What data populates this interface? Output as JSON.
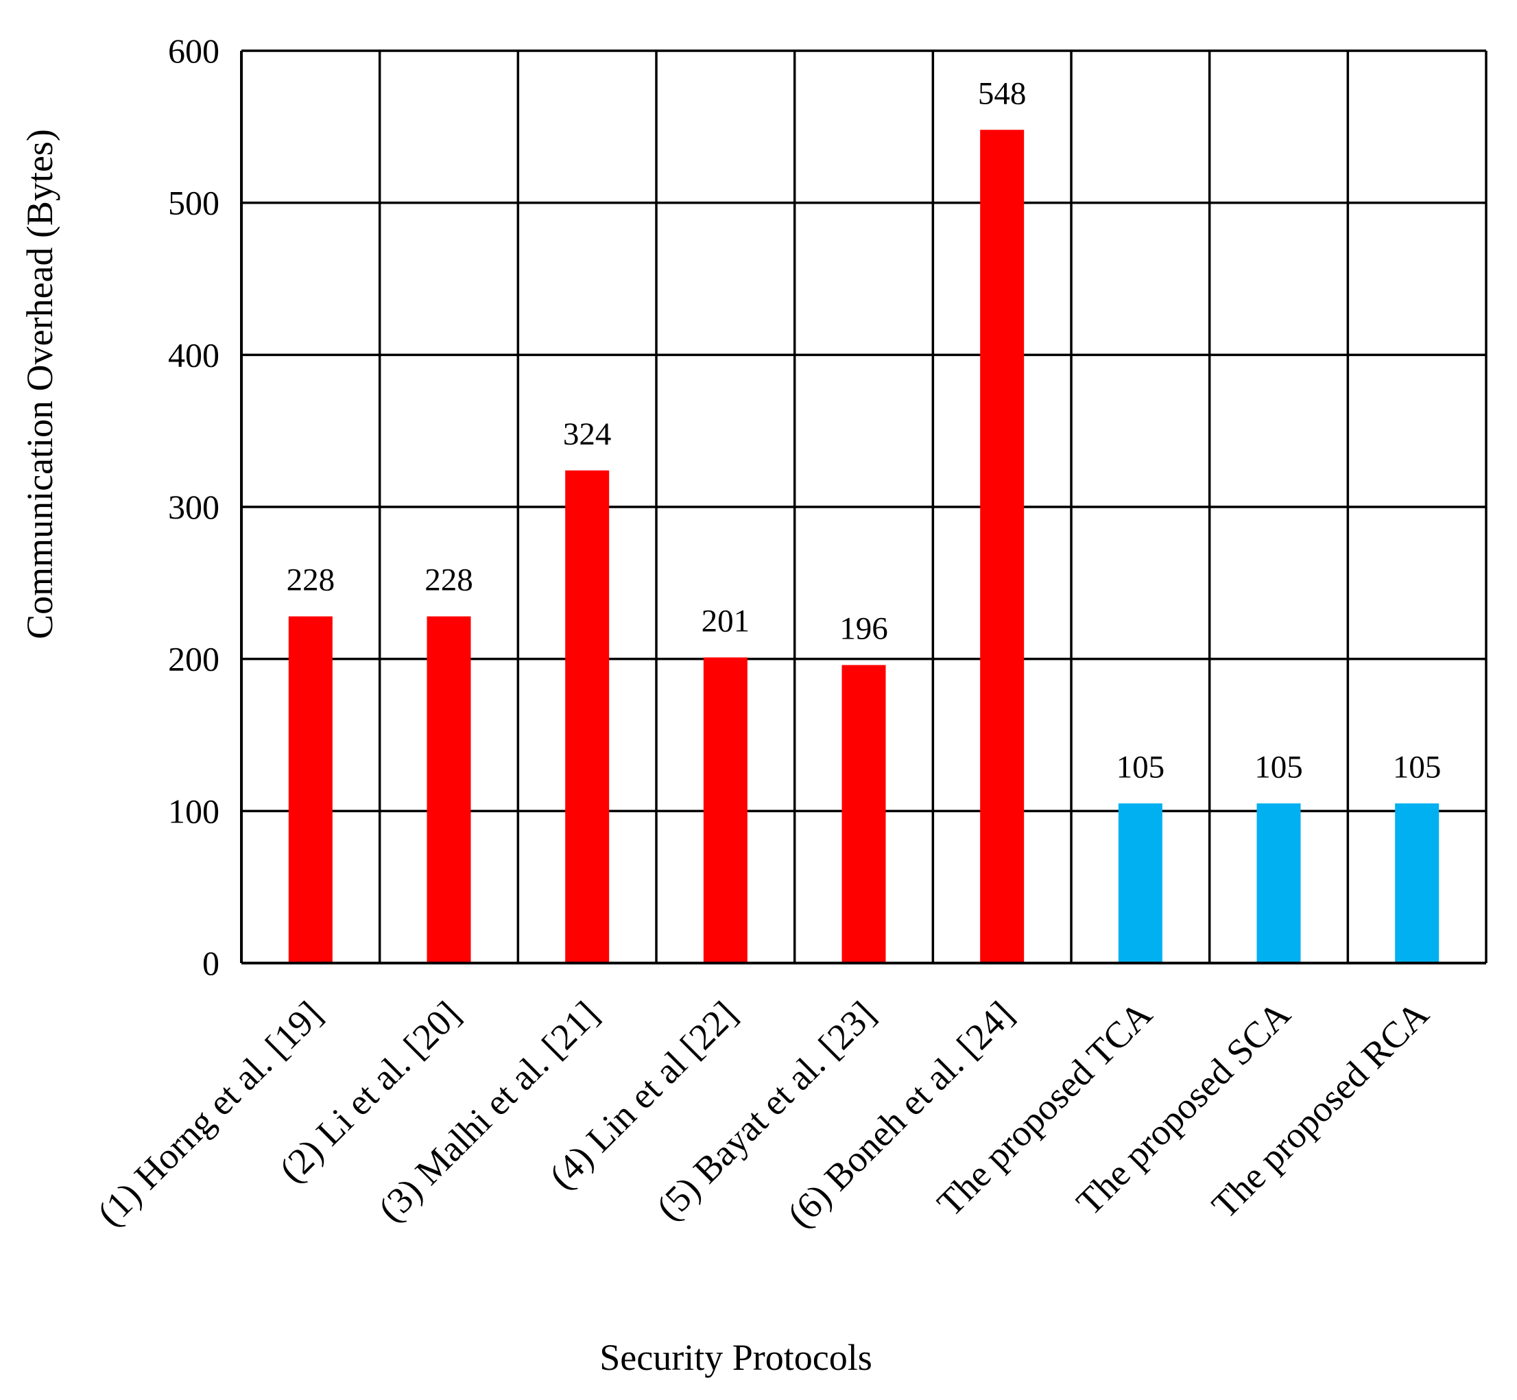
{
  "chart_data": {
    "type": "bar",
    "title": "",
    "xlabel": "Security Protocols",
    "ylabel": "Communication Overhead (Bytes)",
    "ylim": [
      0,
      600
    ],
    "yticks": [
      0,
      100,
      200,
      300,
      400,
      500,
      600
    ],
    "grid": true,
    "legend": "none",
    "categories": [
      "(1) Horng et al. [19]",
      "(2) Li et al. [20]",
      "(3) Malhi et al. [21]",
      "(4) Lin et al [22]",
      "(5) Bayat et al. [23]",
      "(6) Boneh et al. [24]",
      "The proposed TCA",
      "The proposed SCA",
      "The proposed RCA"
    ],
    "values": [
      228,
      228,
      324,
      201,
      196,
      548,
      105,
      105,
      105
    ],
    "data_labels": [
      "228",
      "228",
      "324",
      "201",
      "196",
      "548",
      "105",
      "105",
      "105"
    ],
    "bar_colors": [
      "#ff0000",
      "#ff0000",
      "#ff0000",
      "#ff0000",
      "#ff0000",
      "#ff0000",
      "#00b0f0",
      "#00b0f0",
      "#00b0f0"
    ]
  }
}
